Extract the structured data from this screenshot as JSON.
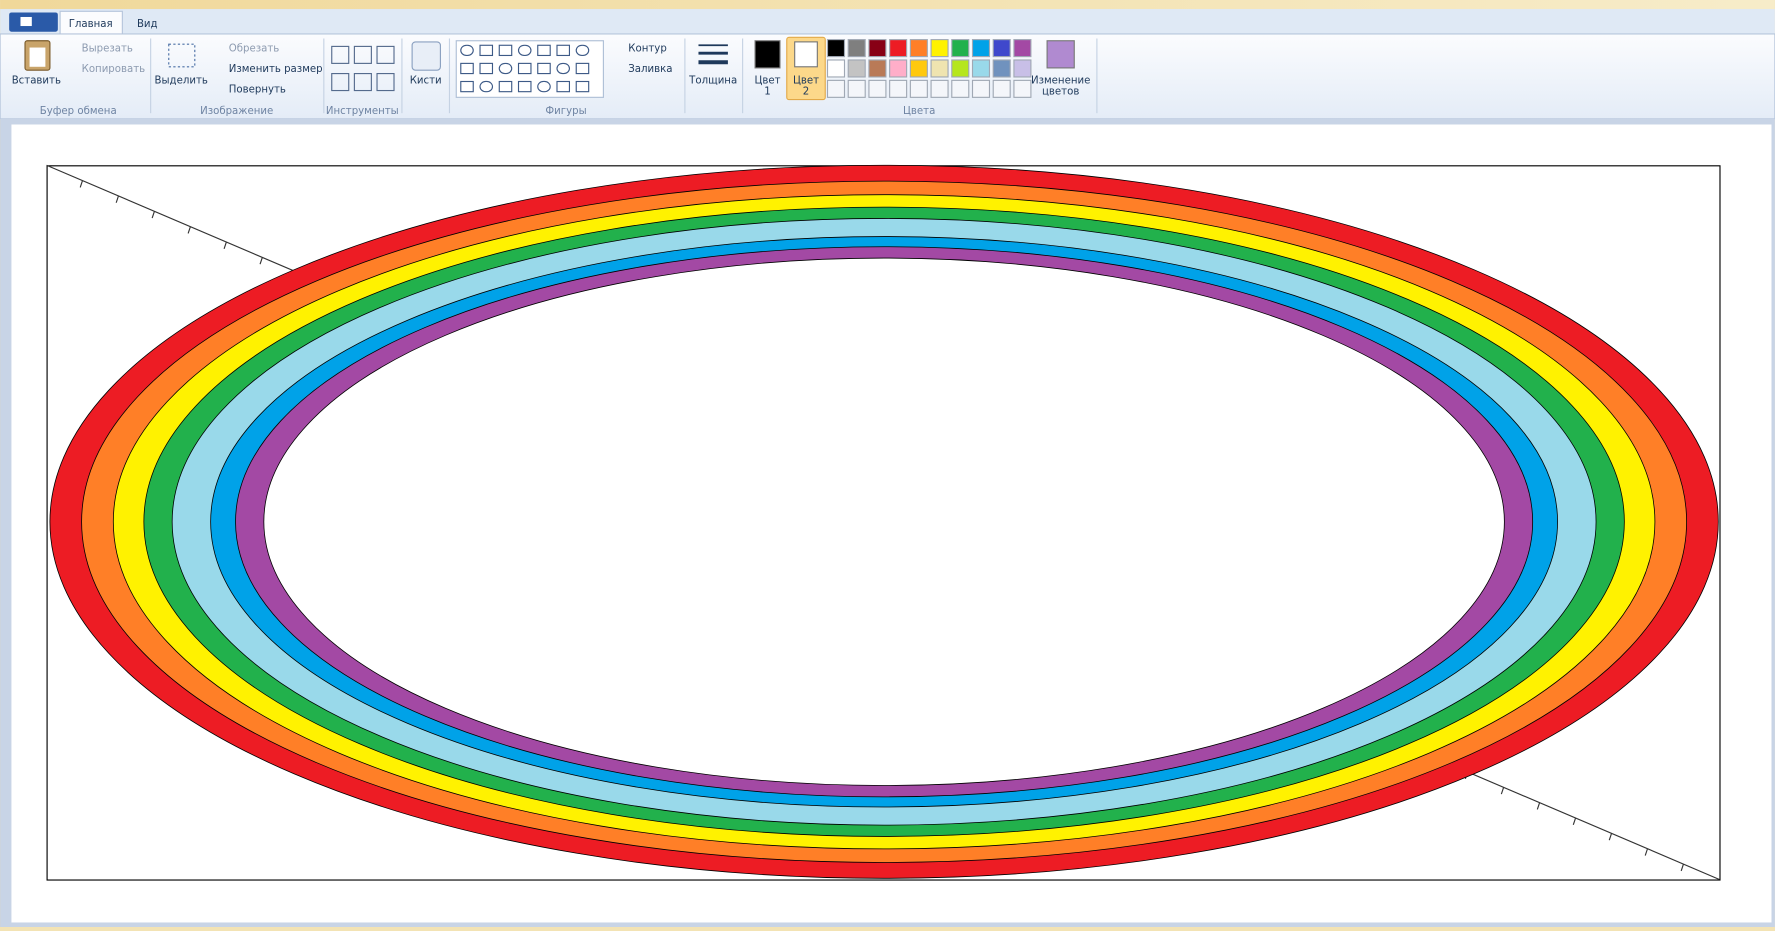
{
  "tabs": [
    "Главная",
    "Вид"
  ],
  "groups": {
    "clipboard": "Буфер обмена",
    "image": "Изображение",
    "tools": "Инструменты",
    "shapes": "Фигуры",
    "colors": "Цвета"
  },
  "buttons": {
    "paste": "Вставить",
    "cut": "Вырезать",
    "copy": "Копировать",
    "select": "Выделить",
    "crop": "Обрезать",
    "resize": "Изменить размер",
    "rotate": "Повернуть",
    "brushes": "Кисти",
    "outline": "Контур",
    "fill": "Заливка",
    "size": "Толщина",
    "color1": [
      "Цвет",
      "1"
    ],
    "color2": [
      "Цвет",
      "2"
    ],
    "edit_colors": [
      "Изменение",
      "цветов"
    ]
  }
}
